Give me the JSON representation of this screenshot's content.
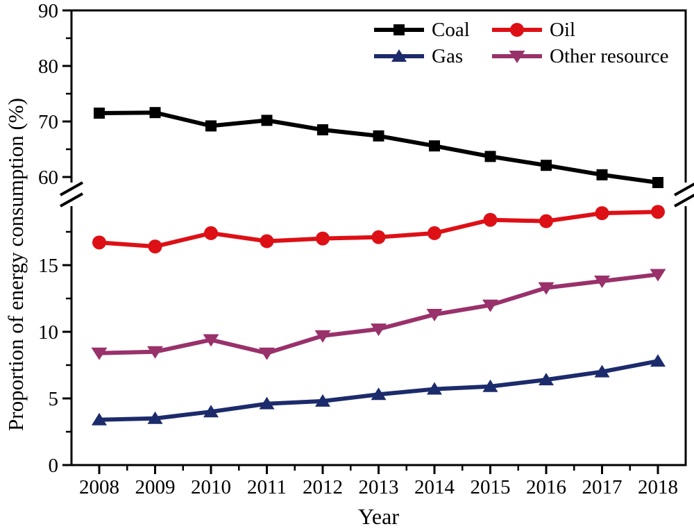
{
  "chart_data": {
    "type": "line",
    "title": "",
    "xlabel": "Year",
    "ylabel": "Proportion of energy consumption (%)",
    "grid": false,
    "legend_position": "top-right-inside",
    "x": [
      "2008",
      "2009",
      "2010",
      "2011",
      "2012",
      "2013",
      "2014",
      "2015",
      "2016",
      "2017",
      "2018"
    ],
    "series": [
      {
        "name": "Coal",
        "marker": "square",
        "color": "#000000",
        "values": [
          71.5,
          71.6,
          69.2,
          70.2,
          68.5,
          67.4,
          65.6,
          63.7,
          62.1,
          60.4,
          59.0
        ]
      },
      {
        "name": "Oil",
        "marker": "circle",
        "color": "#dd1016",
        "values": [
          16.7,
          16.4,
          17.4,
          16.8,
          17.0,
          17.1,
          17.4,
          18.4,
          18.3,
          18.9,
          19.0
        ]
      },
      {
        "name": "Gas",
        "marker": "triangle-up",
        "color": "#1c2b6b",
        "values": [
          3.4,
          3.5,
          4.0,
          4.6,
          4.8,
          5.3,
          5.7,
          5.9,
          6.4,
          7.0,
          7.8
        ]
      },
      {
        "name": "Other resource",
        "marker": "triangle-down",
        "color": "#99316b",
        "values": [
          8.4,
          8.5,
          9.4,
          8.4,
          9.7,
          10.2,
          11.3,
          12.0,
          13.3,
          13.8,
          14.3
        ]
      }
    ],
    "y_axis": {
      "broken": true,
      "top_segment": {
        "range": [
          57.8,
          90
        ],
        "major_ticks": [
          60,
          70,
          80,
          90
        ],
        "minor_ticks": [
          65,
          75,
          85
        ]
      },
      "bottom_segment": {
        "range": [
          0,
          19.5
        ],
        "major_ticks": [
          0,
          5,
          10,
          15
        ],
        "minor_ticks": [
          2.5,
          7.5,
          12.5,
          17.5
        ]
      }
    },
    "axis_color": "#000000"
  }
}
